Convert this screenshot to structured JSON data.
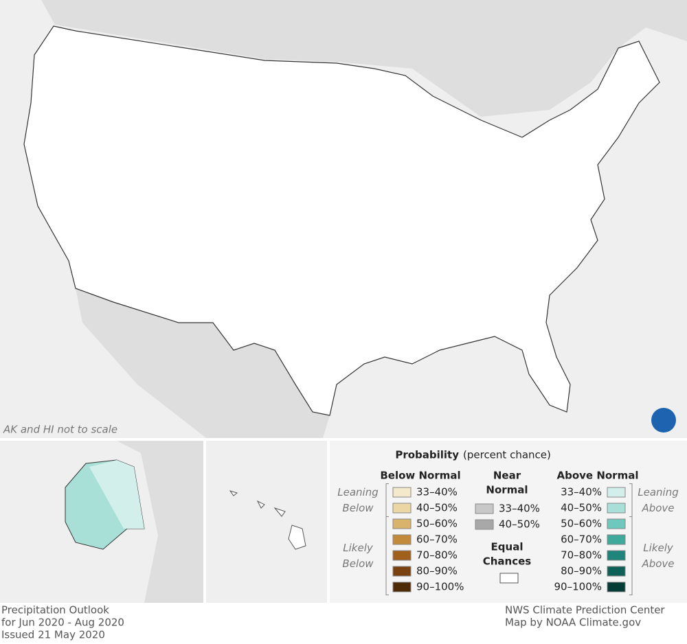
{
  "map": {
    "note": "AK and HI not to scale"
  },
  "legend": {
    "title": "Probability",
    "title_note": "(percent chance)",
    "below": {
      "heading": "Below Normal",
      "leaning": [
        "Leaning",
        "Below"
      ],
      "likely": [
        "Likely",
        "Below"
      ],
      "ranges": [
        {
          "label": "33–40%",
          "color": "#f5e9cc"
        },
        {
          "label": "40–50%",
          "color": "#ecd7a4"
        },
        {
          "label": "50–60%",
          "color": "#d9b36b"
        },
        {
          "label": "60–70%",
          "color": "#c48a3c"
        },
        {
          "label": "70–80%",
          "color": "#a0601c"
        },
        {
          "label": "80–90%",
          "color": "#7a4210"
        },
        {
          "label": "90–100%",
          "color": "#4f2a07"
        }
      ]
    },
    "near": {
      "heading": [
        "Near",
        "Normal"
      ],
      "ranges": [
        {
          "label": "33–40%",
          "color": "#c8c8c8"
        },
        {
          "label": "40–50%",
          "color": "#a8a8a8"
        }
      ]
    },
    "equal": {
      "heading": [
        "Equal",
        "Chances"
      ],
      "color": "#ffffff"
    },
    "above": {
      "heading": "Above Normal",
      "leaning": [
        "Leaning",
        "Above"
      ],
      "likely": [
        "Likely",
        "Above"
      ],
      "ranges": [
        {
          "label": "33–40%",
          "color": "#d3efeb"
        },
        {
          "label": "40–50%",
          "color": "#a8e0d8"
        },
        {
          "label": "50–60%",
          "color": "#6ec8bb"
        },
        {
          "label": "60–70%",
          "color": "#3fa99c"
        },
        {
          "label": "70–80%",
          "color": "#1f857a"
        },
        {
          "label": "80–90%",
          "color": "#0f6157"
        },
        {
          "label": "90–100%",
          "color": "#053d36"
        }
      ]
    }
  },
  "footer": {
    "left": [
      "Precipitation Outlook",
      "for Jun 2020 - Aug 2020",
      "Issued 21 May 2020"
    ],
    "right": [
      "NWS Climate Prediction Center",
      "Map by NOAA Climate.gov"
    ]
  }
}
